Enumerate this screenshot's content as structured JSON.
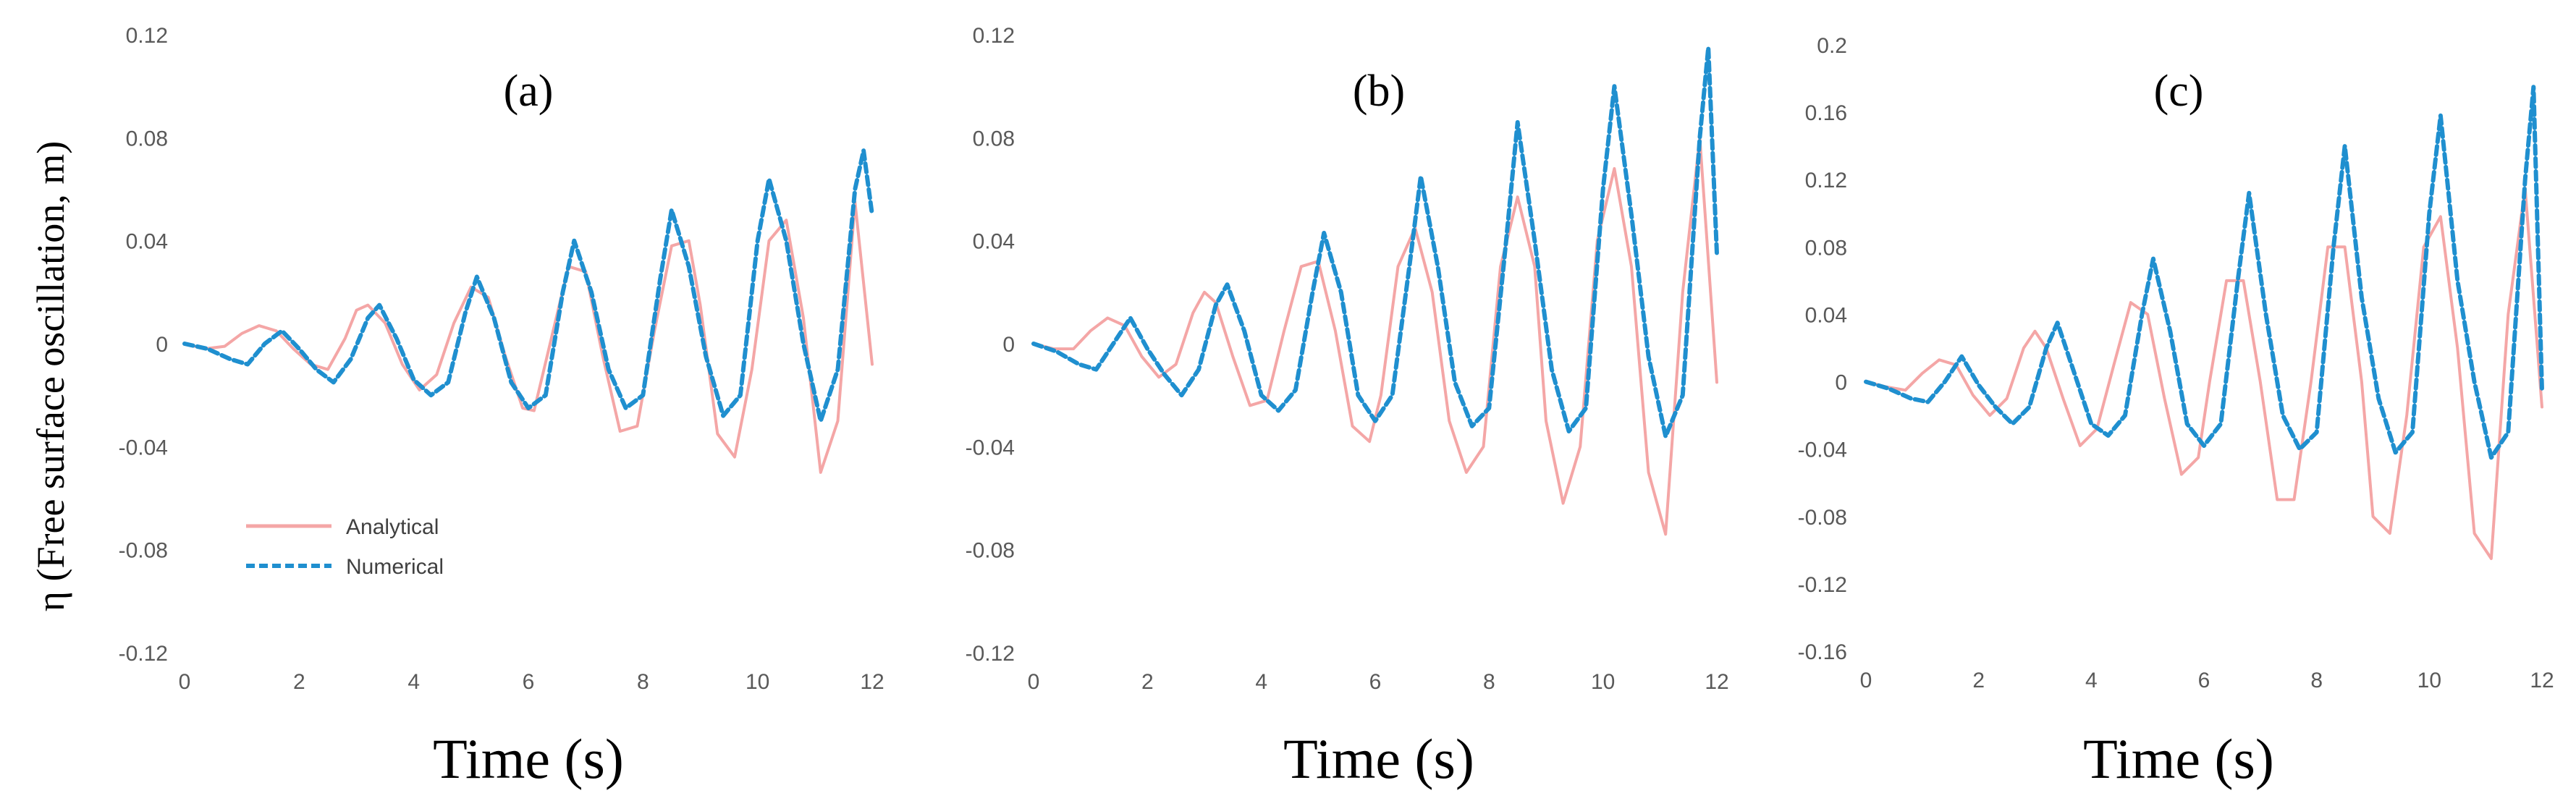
{
  "figure": {
    "y_axis_title": "η (Free surface oscillation, m)"
  },
  "legend": {
    "items": [
      {
        "label": "Analytical",
        "color": "#f4a6a6",
        "style": "solid"
      },
      {
        "label": "Numerical",
        "color": "#1f8fcf",
        "style": "dashed"
      }
    ]
  },
  "chart_data": [
    {
      "type": "line",
      "panel_label": "(a)",
      "xlabel": "Time (s)",
      "xlim": [
        0,
        12
      ],
      "ylim": [
        -0.12,
        0.12
      ],
      "x_ticks": [
        "0",
        "2",
        "4",
        "6",
        "8",
        "10",
        "12"
      ],
      "y_ticks": [
        "0.12",
        "0.08",
        "0.04",
        "0",
        "-0.04",
        "-0.08",
        "-0.12"
      ],
      "y_tick_values": [
        0.12,
        0.08,
        0.04,
        0,
        -0.04,
        -0.08,
        -0.12
      ],
      "series": [
        {
          "name": "Analytical",
          "x": [
            0,
            0.35,
            0.7,
            1.0,
            1.3,
            1.6,
            1.9,
            2.2,
            2.5,
            2.8,
            3.0,
            3.2,
            3.5,
            3.8,
            4.1,
            4.4,
            4.7,
            5.0,
            5.3,
            5.6,
            5.9,
            6.1,
            6.4,
            6.7,
            7.0,
            7.3,
            7.6,
            7.9,
            8.2,
            8.5,
            8.8,
            9.0,
            9.3,
            9.6,
            9.9,
            10.2,
            10.5,
            10.8,
            11.1,
            11.4,
            11.7,
            12.0
          ],
          "y": [
            0,
            -0.002,
            -0.001,
            0.004,
            0.007,
            0.005,
            -0.002,
            -0.008,
            -0.01,
            0.002,
            0.013,
            0.015,
            0.008,
            -0.008,
            -0.018,
            -0.012,
            0.008,
            0.022,
            0.018,
            -0.005,
            -0.025,
            -0.026,
            0.002,
            0.03,
            0.028,
            -0.005,
            -0.034,
            -0.032,
            0.005,
            0.038,
            0.04,
            0.015,
            -0.035,
            -0.044,
            -0.01,
            0.04,
            0.048,
            0.01,
            -0.05,
            -0.03,
            0.055,
            -0.008
          ]
        },
        {
          "name": "Numerical",
          "x": [
            0,
            0.4,
            0.8,
            1.1,
            1.4,
            1.7,
            2.0,
            2.3,
            2.6,
            2.9,
            3.2,
            3.4,
            3.7,
            4.0,
            4.3,
            4.6,
            4.9,
            5.1,
            5.4,
            5.7,
            6.0,
            6.3,
            6.6,
            6.8,
            7.1,
            7.4,
            7.7,
            8.0,
            8.3,
            8.5,
            8.8,
            9.1,
            9.4,
            9.7,
            10.0,
            10.2,
            10.5,
            10.8,
            11.1,
            11.4,
            11.7,
            11.85,
            12.0
          ],
          "y": [
            0,
            -0.002,
            -0.006,
            -0.008,
            0.0,
            0.005,
            -0.002,
            -0.01,
            -0.015,
            -0.006,
            0.01,
            0.015,
            0.002,
            -0.014,
            -0.02,
            -0.015,
            0.012,
            0.026,
            0.01,
            -0.015,
            -0.025,
            -0.02,
            0.02,
            0.04,
            0.02,
            -0.01,
            -0.025,
            -0.02,
            0.025,
            0.052,
            0.03,
            -0.005,
            -0.028,
            -0.02,
            0.04,
            0.064,
            0.04,
            0.0,
            -0.03,
            -0.01,
            0.06,
            0.075,
            0.05
          ]
        }
      ]
    },
    {
      "type": "line",
      "panel_label": "(b)",
      "xlabel": "Time (s)",
      "xlim": [
        0,
        12
      ],
      "ylim": [
        -0.12,
        0.12
      ],
      "x_ticks": [
        "0",
        "2",
        "4",
        "6",
        "8",
        "10",
        "12"
      ],
      "y_ticks": [
        "0.12",
        "0.08",
        "0.04",
        "0",
        "-0.04",
        "-0.08",
        "-0.12"
      ],
      "y_tick_values": [
        0.12,
        0.08,
        0.04,
        0,
        -0.04,
        -0.08,
        -0.12
      ],
      "series": [
        {
          "name": "Analytical",
          "x": [
            0,
            0.35,
            0.7,
            1.0,
            1.3,
            1.6,
            1.9,
            2.2,
            2.5,
            2.8,
            3.0,
            3.2,
            3.5,
            3.8,
            4.1,
            4.4,
            4.7,
            5.0,
            5.3,
            5.6,
            5.9,
            6.1,
            6.4,
            6.7,
            7.0,
            7.3,
            7.6,
            7.9,
            8.2,
            8.5,
            8.8,
            9.0,
            9.3,
            9.6,
            9.9,
            10.2,
            10.5,
            10.8,
            11.1,
            11.4,
            11.7,
            12.0
          ],
          "y": [
            0,
            -0.002,
            -0.002,
            0.005,
            0.01,
            0.007,
            -0.005,
            -0.013,
            -0.008,
            0.012,
            0.02,
            0.016,
            -0.005,
            -0.024,
            -0.022,
            0.005,
            0.03,
            0.032,
            0.005,
            -0.032,
            -0.038,
            -0.02,
            0.03,
            0.045,
            0.02,
            -0.03,
            -0.05,
            -0.04,
            0.03,
            0.057,
            0.03,
            -0.03,
            -0.062,
            -0.04,
            0.04,
            0.068,
            0.03,
            -0.05,
            -0.074,
            0.02,
            0.08,
            -0.015
          ]
        },
        {
          "name": "Numerical",
          "x": [
            0,
            0.4,
            0.8,
            1.1,
            1.4,
            1.7,
            2.0,
            2.3,
            2.6,
            2.9,
            3.2,
            3.4,
            3.7,
            4.0,
            4.3,
            4.6,
            4.9,
            5.1,
            5.4,
            5.7,
            6.0,
            6.3,
            6.6,
            6.8,
            7.1,
            7.4,
            7.7,
            8.0,
            8.3,
            8.5,
            8.8,
            9.1,
            9.4,
            9.7,
            10.0,
            10.2,
            10.5,
            10.8,
            11.1,
            11.4,
            11.7,
            11.85,
            12.0
          ],
          "y": [
            0,
            -0.003,
            -0.008,
            -0.01,
            0.0,
            0.01,
            -0.002,
            -0.012,
            -0.02,
            -0.01,
            0.015,
            0.023,
            0.005,
            -0.02,
            -0.026,
            -0.018,
            0.02,
            0.043,
            0.02,
            -0.02,
            -0.03,
            -0.02,
            0.03,
            0.065,
            0.03,
            -0.015,
            -0.032,
            -0.025,
            0.04,
            0.086,
            0.04,
            -0.01,
            -0.034,
            -0.025,
            0.06,
            0.1,
            0.05,
            -0.005,
            -0.036,
            -0.02,
            0.08,
            0.115,
            0.035
          ]
        }
      ]
    },
    {
      "type": "line",
      "panel_label": "(c)",
      "xlabel": "Time (s)",
      "xlim": [
        0,
        12
      ],
      "ylim": [
        -0.16,
        0.2
      ],
      "x_ticks": [
        "0",
        "2",
        "4",
        "6",
        "8",
        "10",
        "12"
      ],
      "y_ticks": [
        "0.2",
        "0.16",
        "0.12",
        "0.08",
        "0.04",
        "0",
        "-0.04",
        "-0.08",
        "-0.12",
        "-0.16"
      ],
      "y_tick_values": [
        0.2,
        0.16,
        0.12,
        0.08,
        0.04,
        0,
        -0.04,
        -0.08,
        -0.12,
        -0.16
      ],
      "series": [
        {
          "name": "Analytical",
          "x": [
            0,
            0.35,
            0.7,
            1.0,
            1.3,
            1.6,
            1.9,
            2.2,
            2.5,
            2.8,
            3.0,
            3.2,
            3.5,
            3.8,
            4.1,
            4.4,
            4.7,
            5.0,
            5.3,
            5.6,
            5.9,
            6.1,
            6.4,
            6.7,
            7.0,
            7.3,
            7.6,
            7.9,
            8.2,
            8.5,
            8.8,
            9.0,
            9.3,
            9.6,
            9.9,
            10.2,
            10.5,
            10.8,
            11.1,
            11.4,
            11.7,
            12.0
          ],
          "y": [
            0,
            -0.003,
            -0.005,
            0.005,
            0.013,
            0.01,
            -0.008,
            -0.02,
            -0.01,
            0.02,
            0.03,
            0.02,
            -0.01,
            -0.038,
            -0.028,
            0.01,
            0.047,
            0.04,
            -0.01,
            -0.055,
            -0.045,
            0.0,
            0.06,
            0.06,
            0.0,
            -0.07,
            -0.07,
            0.0,
            0.08,
            0.08,
            0.0,
            -0.08,
            -0.09,
            -0.02,
            0.08,
            0.098,
            0.02,
            -0.09,
            -0.105,
            0.04,
            0.115,
            -0.015
          ]
        },
        {
          "name": "Numerical",
          "x": [
            0,
            0.4,
            0.8,
            1.1,
            1.4,
            1.7,
            2.0,
            2.3,
            2.6,
            2.9,
            3.2,
            3.4,
            3.7,
            4.0,
            4.3,
            4.6,
            4.9,
            5.1,
            5.4,
            5.7,
            6.0,
            6.3,
            6.6,
            6.8,
            7.1,
            7.4,
            7.7,
            8.0,
            8.3,
            8.5,
            8.8,
            9.1,
            9.4,
            9.7,
            10.0,
            10.2,
            10.5,
            10.8,
            11.1,
            11.4,
            11.7,
            11.85,
            12.0
          ],
          "y": [
            0,
            -0.004,
            -0.01,
            -0.012,
            0.0,
            0.015,
            -0.002,
            -0.015,
            -0.025,
            -0.015,
            0.02,
            0.035,
            0.005,
            -0.025,
            -0.032,
            -0.02,
            0.04,
            0.073,
            0.03,
            -0.025,
            -0.038,
            -0.025,
            0.06,
            0.112,
            0.04,
            -0.02,
            -0.04,
            -0.03,
            0.08,
            0.14,
            0.05,
            -0.01,
            -0.042,
            -0.03,
            0.1,
            0.158,
            0.06,
            0.0,
            -0.045,
            -0.03,
            0.12,
            0.175,
            -0.005
          ]
        }
      ]
    }
  ]
}
